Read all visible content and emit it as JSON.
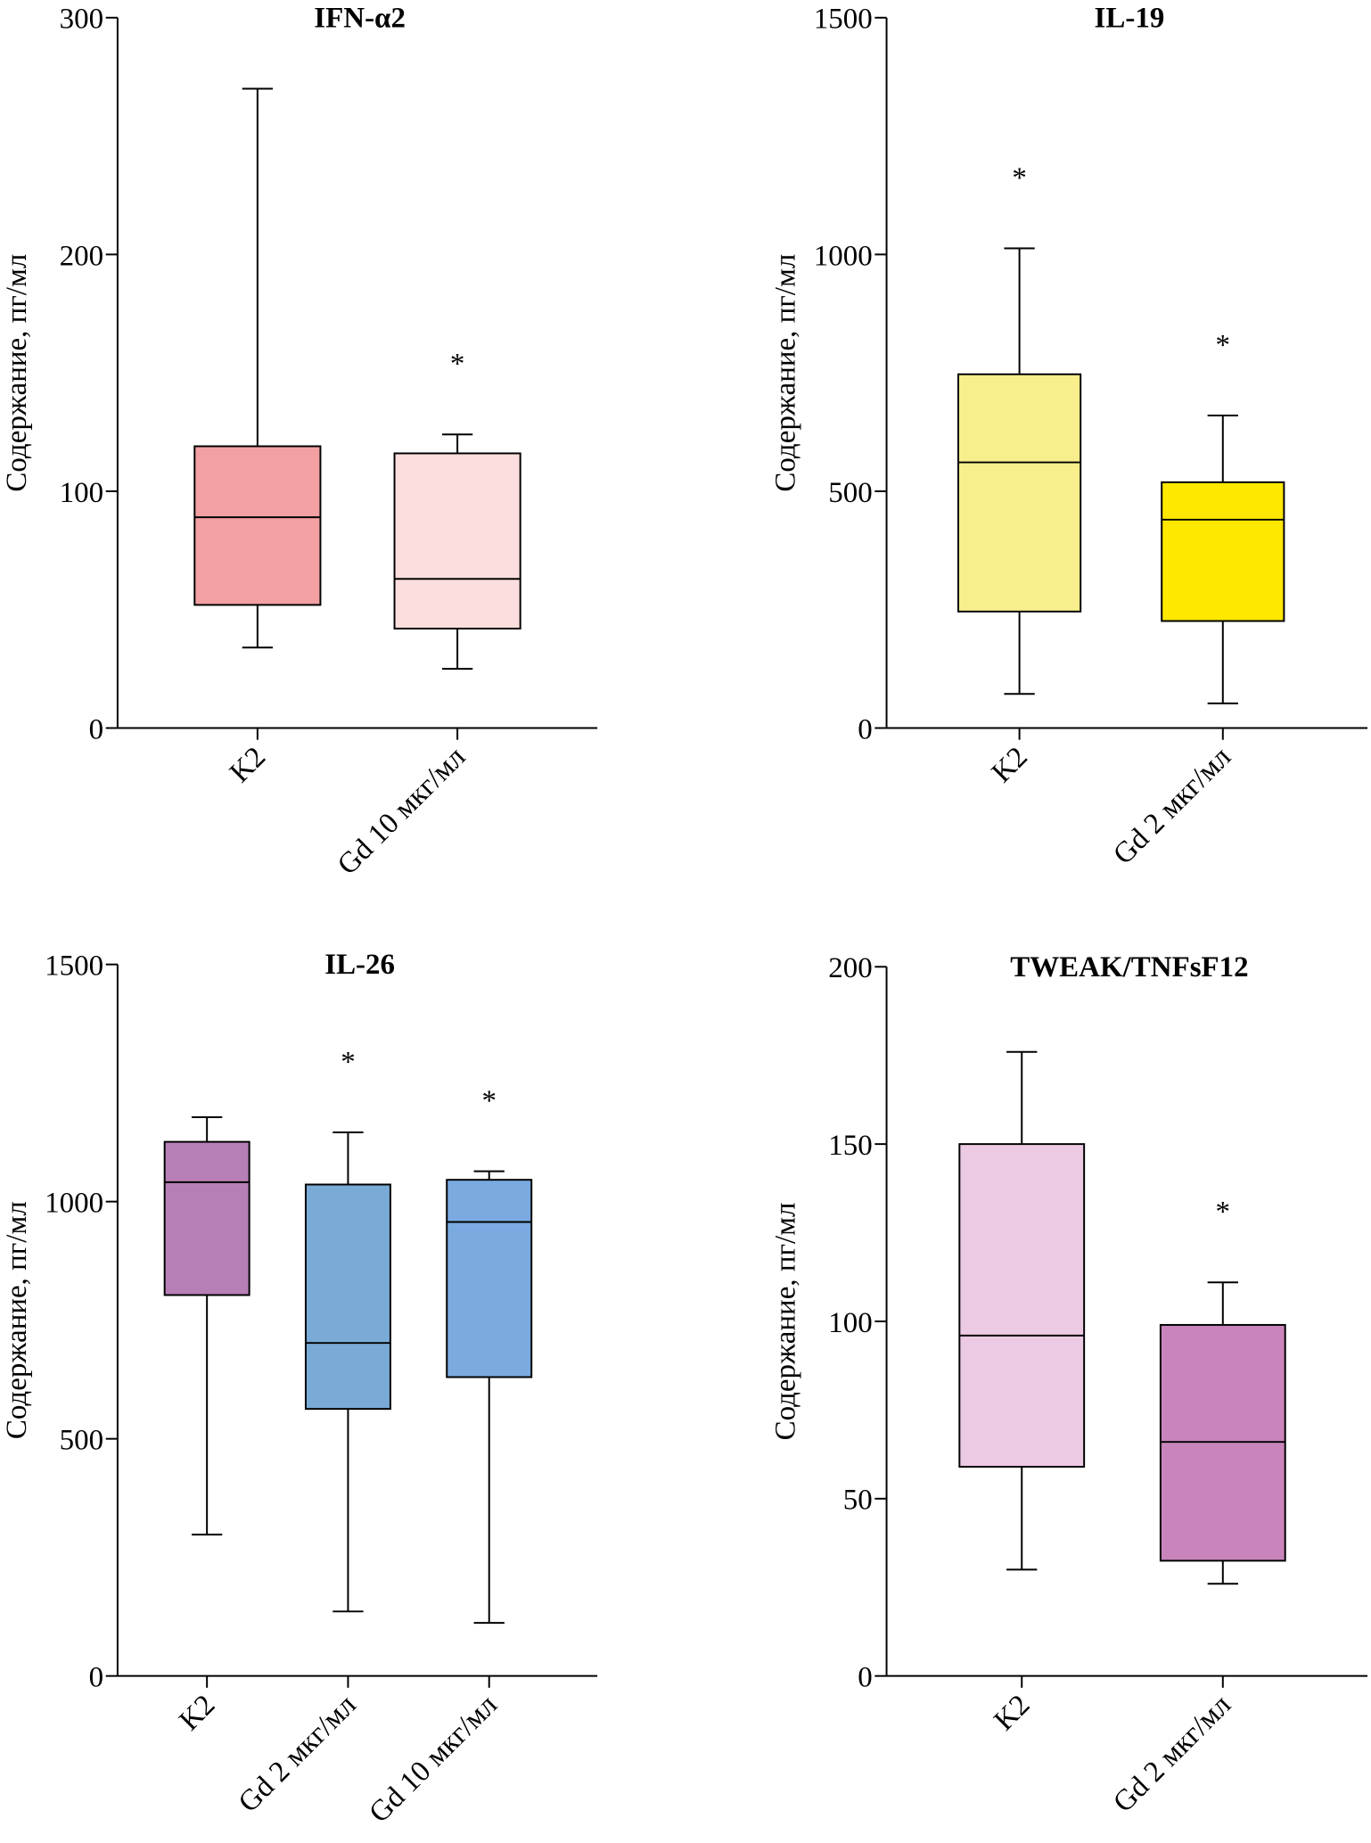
{
  "chart_data": [
    {
      "type": "box",
      "title": "IFN-α2",
      "ylabel": "Содержание, пг/мл",
      "categories": [
        "K2",
        "Gd 10 мкг/мл"
      ],
      "boxes": [
        {
          "min": 34,
          "q1": 52,
          "median": 89,
          "q3": 119,
          "max": 270,
          "color": "#f2a0a2"
        },
        {
          "min": 25,
          "q1": 42,
          "median": 63,
          "q3": 116,
          "max": 124,
          "color": "#fbdedd"
        }
      ],
      "markers": [
        null,
        "*"
      ],
      "ylim": [
        0,
        300
      ],
      "yticks": [
        0,
        100,
        200,
        300
      ]
    },
    {
      "type": "box",
      "title": "IL-19",
      "ylabel": "Содержание, пг/мл",
      "categories": [
        "K2",
        "Gd 2 мкг/мл"
      ],
      "boxes": [
        {
          "min": 72,
          "q1": 246,
          "median": 561,
          "q3": 747,
          "max": 1013,
          "color": "#f8ee8c"
        },
        {
          "min": 52,
          "q1": 226,
          "median": 440,
          "q3": 519,
          "max": 660,
          "color": "#ffe800"
        }
      ],
      "markers": [
        "*",
        "*"
      ],
      "ylim": [
        0,
        1500
      ],
      "yticks": [
        0,
        500,
        1000,
        1500
      ]
    },
    {
      "type": "box",
      "title": "IL-26",
      "ylabel": "Содержание, пг/мл",
      "categories": [
        "K2",
        "Gd 2 мкг/мл",
        "Gd 10 мкг/мл"
      ],
      "boxes": [
        {
          "min": 298,
          "q1": 803,
          "median": 1041,
          "q3": 1126,
          "max": 1178,
          "color": "#b87fb7"
        },
        {
          "min": 136,
          "q1": 563,
          "median": 702,
          "q3": 1036,
          "max": 1146,
          "color": "#7aaad6"
        },
        {
          "min": 112,
          "q1": 630,
          "median": 957,
          "q3": 1046,
          "max": 1064,
          "color": "#7aaae0"
        }
      ],
      "markers": [
        null,
        "*",
        "*"
      ],
      "ylim": [
        0,
        1500
      ],
      "yticks": [
        0,
        500,
        1000,
        1500
      ]
    },
    {
      "type": "box",
      "title": "TWEAK/TNFsF12",
      "ylabel": "Содержание, пг/мл",
      "categories": [
        "K2",
        "Gd 2 мкг/мл"
      ],
      "boxes": [
        {
          "min": 30,
          "q1": 59,
          "median": 96,
          "q3": 150,
          "max": 176,
          "color": "#edcae3"
        },
        {
          "min": 26,
          "q1": 32.5,
          "median": 66,
          "q3": 99,
          "max": 111,
          "color": "#c985bb"
        }
      ],
      "markers": [
        null,
        "*"
      ],
      "ylim": [
        0,
        200
      ],
      "yticks": [
        0,
        50,
        100,
        150,
        200
      ]
    }
  ]
}
